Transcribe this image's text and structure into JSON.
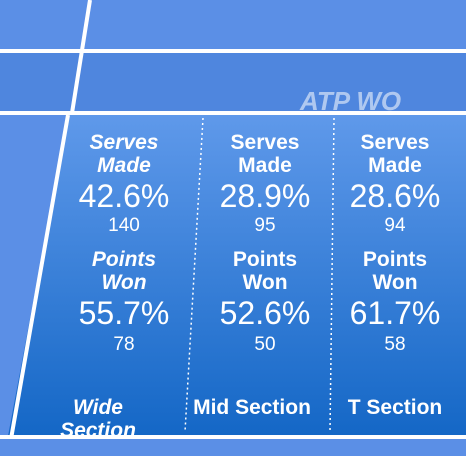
{
  "banner": "ATP WO",
  "sections": [
    {
      "name": "Wide Section",
      "serves_label": "Serves Made",
      "serves_pct": "42.6%",
      "serves_count": "140",
      "points_label": "Points Won",
      "points_pct": "55.7%",
      "points_count": "78"
    },
    {
      "name": "Mid Section",
      "serves_label": "Serves Made",
      "serves_pct": "28.9%",
      "serves_count": "95",
      "points_label": "Points Won",
      "points_pct": "52.6%",
      "points_count": "50"
    },
    {
      "name": "T Section",
      "serves_label": "Serves Made",
      "serves_pct": "28.6%",
      "serves_count": "94",
      "points_label": "Points Won",
      "points_pct": "61.7%",
      "points_count": "58"
    }
  ]
}
